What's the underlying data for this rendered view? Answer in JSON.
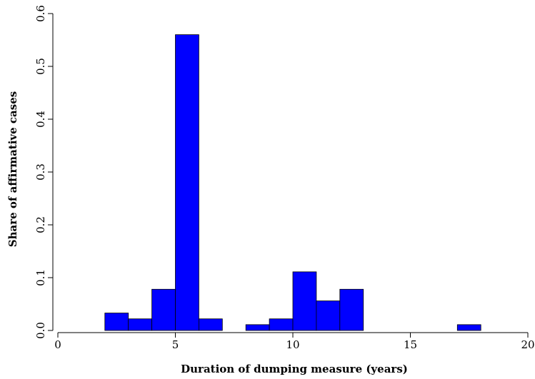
{
  "chart_data": {
    "type": "bar",
    "subtype": "histogram",
    "title": "",
    "xlabel": "Duration of dumping measure (years)",
    "ylabel": "Share of affirmative cases",
    "xlim": [
      0,
      20
    ],
    "ylim": [
      0,
      0.6
    ],
    "xticks": [
      0,
      5,
      10,
      15,
      20
    ],
    "yticks": [
      "0.0",
      "0.1",
      "0.2",
      "0.3",
      "0.4",
      "0.5",
      "0.6"
    ],
    "bar_color": "#0000ff",
    "grid": false,
    "legend": "none",
    "bins": [
      {
        "x0": 2,
        "x1": 3,
        "value": 0.033
      },
      {
        "x0": 3,
        "x1": 4,
        "value": 0.022
      },
      {
        "x0": 4,
        "x1": 5,
        "value": 0.078
      },
      {
        "x0": 5,
        "x1": 6,
        "value": 0.56
      },
      {
        "x0": 6,
        "x1": 7,
        "value": 0.022
      },
      {
        "x0": 8,
        "x1": 9,
        "value": 0.011
      },
      {
        "x0": 9,
        "x1": 10,
        "value": 0.022
      },
      {
        "x0": 10,
        "x1": 11,
        "value": 0.111
      },
      {
        "x0": 11,
        "x1": 12,
        "value": 0.056
      },
      {
        "x0": 12,
        "x1": 13,
        "value": 0.078
      },
      {
        "x0": 17,
        "x1": 18,
        "value": 0.011
      }
    ]
  }
}
